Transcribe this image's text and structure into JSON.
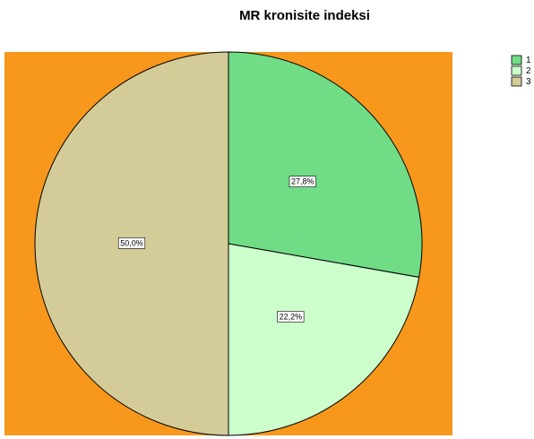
{
  "chart_data": {
    "type": "pie",
    "title": "MR kronisite indeksi",
    "categories": [
      "1",
      "2",
      "3"
    ],
    "values": [
      27.8,
      22.2,
      50.0
    ],
    "value_labels": [
      "27,8%",
      "22,2%",
      "50,0%"
    ],
    "colors": [
      "#70dc86",
      "#ccffcc",
      "#d3cc98"
    ],
    "background": "#f7981d",
    "legend": "right"
  }
}
